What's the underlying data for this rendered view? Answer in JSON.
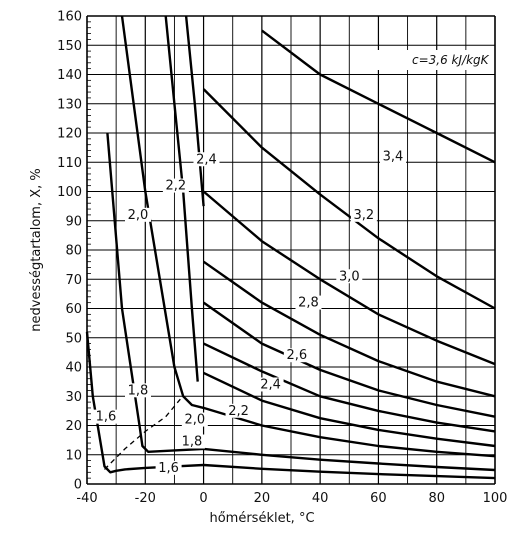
{
  "chart_data": {
    "type": "line",
    "xlabel": "hőmérséklet, °C",
    "ylabel": "nedvességtartalom, X, %",
    "annotation": "c=3,6 kJ/kgK",
    "xlim": [
      -40,
      100
    ],
    "ylim": [
      0,
      160
    ],
    "x_ticks": [
      "-40",
      "-20",
      "0",
      "20",
      "40",
      "60",
      "80",
      "100"
    ],
    "y_ticks": [
      "0",
      "10",
      "20",
      "30",
      "40",
      "50",
      "60",
      "70",
      "80",
      "90",
      "100",
      "110",
      "120",
      "130",
      "140",
      "150",
      "160"
    ],
    "grid": true,
    "frozen_curves": [
      {
        "name": "1,6",
        "x": [
          -40,
          -38,
          -35,
          -34,
          -32,
          -30,
          -27,
          -20,
          -10,
          0
        ],
        "y": [
          52,
          30,
          12,
          6,
          4,
          4.5,
          5,
          5.5,
          6,
          6.5
        ]
      },
      {
        "name": "1,8",
        "x": [
          -33,
          -28,
          -22,
          -21,
          -19,
          -10,
          0
        ],
        "y": [
          120,
          60,
          20,
          13,
          11,
          11.5,
          12
        ]
      },
      {
        "name": "2,0",
        "x": [
          -28,
          -20,
          -10,
          -7,
          -4,
          0
        ],
        "y": [
          160,
          100,
          40,
          30,
          27,
          26
        ]
      },
      {
        "name": "2,2",
        "x": [
          -13,
          -10,
          -7,
          -4,
          -2
        ],
        "y": [
          160,
          130,
          100,
          60,
          35
        ]
      },
      {
        "name": "2,4",
        "x": [
          -6,
          -3,
          0
        ],
        "y": [
          160,
          130,
          95
        ]
      }
    ],
    "unfrozen_curves": [
      {
        "name": "1,6",
        "x": [
          0,
          20,
          40,
          60,
          80,
          100
        ],
        "y": [
          6.5,
          5.2,
          4.2,
          3.4,
          2.7,
          2
        ]
      },
      {
        "name": "1,8",
        "x": [
          0,
          20,
          40,
          60,
          80,
          100
        ],
        "y": [
          12,
          10,
          8.3,
          7,
          5.8,
          4.8
        ]
      },
      {
        "name": "2,0",
        "x": [
          0,
          20,
          40,
          60,
          80,
          100
        ],
        "y": [
          26,
          20,
          16,
          13,
          11,
          9.5
        ]
      },
      {
        "name": "2,2",
        "x": [
          0,
          20,
          40,
          60,
          80,
          100
        ],
        "y": [
          38,
          28.5,
          22.5,
          18.5,
          15.5,
          13
        ]
      },
      {
        "name": "2,4",
        "x": [
          0,
          20,
          40,
          60,
          80,
          100
        ],
        "y": [
          48,
          38.5,
          30,
          25,
          21,
          18
        ]
      },
      {
        "name": "2,6",
        "x": [
          0,
          20,
          40,
          60,
          80,
          100
        ],
        "y": [
          62,
          48,
          39,
          32,
          27,
          23
        ]
      },
      {
        "name": "2,8",
        "x": [
          0,
          20,
          40,
          60,
          80,
          100
        ],
        "y": [
          76,
          62,
          51,
          42,
          35,
          30
        ]
      },
      {
        "name": "3,0",
        "x": [
          0,
          20,
          40,
          60,
          80,
          100
        ],
        "y": [
          100,
          83,
          70,
          58,
          49,
          41
        ]
      },
      {
        "name": "3,2",
        "x": [
          0,
          20,
          40,
          60,
          80,
          100
        ],
        "y": [
          135,
          115,
          99,
          84,
          71,
          60
        ]
      },
      {
        "name": "3,4",
        "x": [
          20,
          40,
          60,
          80,
          100
        ],
        "y": [
          155,
          140,
          130,
          120,
          110
        ]
      }
    ],
    "dashed_line": {
      "x": [
        -34,
        -27,
        -20,
        -13,
        -8
      ],
      "y": [
        5,
        12,
        18,
        23,
        29
      ]
    },
    "labels": [
      {
        "text": "1,6",
        "x": -33.5,
        "y": 22
      },
      {
        "text": "1,8",
        "x": -22.5,
        "y": 31
      },
      {
        "text": "2,0",
        "x": -22.5,
        "y": 91
      },
      {
        "text": "2,2",
        "x": -9.5,
        "y": 101
      },
      {
        "text": "2,4",
        "x": 1,
        "y": 110
      },
      {
        "text": "2,0",
        "x": -3,
        "y": 21
      },
      {
        "text": "1,8",
        "x": -4,
        "y": 13.5
      },
      {
        "text": "1,6",
        "x": -12,
        "y": 4.5
      },
      {
        "text": "2,2",
        "x": 12,
        "y": 24
      },
      {
        "text": "2,4",
        "x": 23,
        "y": 33
      },
      {
        "text": "2,6",
        "x": 32,
        "y": 43
      },
      {
        "text": "2,8",
        "x": 36,
        "y": 61
      },
      {
        "text": "3,0",
        "x": 50,
        "y": 70
      },
      {
        "text": "3,2",
        "x": 55,
        "y": 91
      },
      {
        "text": "3,4",
        "x": 65,
        "y": 111
      }
    ]
  }
}
